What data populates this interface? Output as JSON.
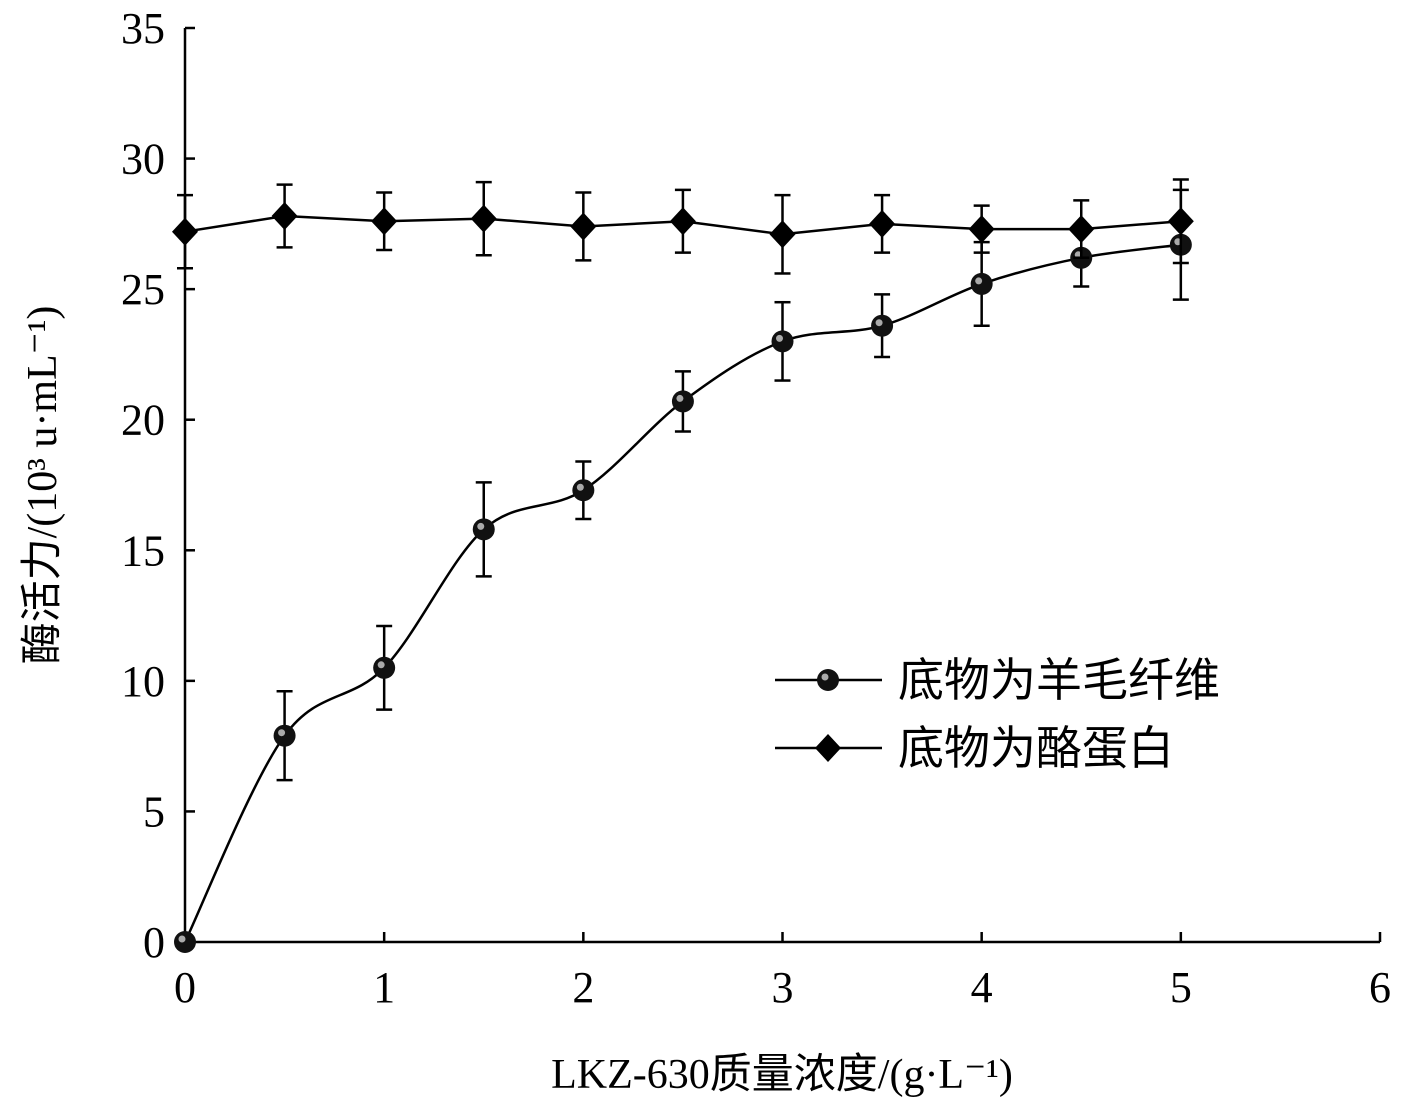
{
  "chart_data": {
    "type": "line",
    "title": "",
    "xlabel": "LKZ-630质量浓度/(g·L⁻¹)",
    "ylabel": "酶活力/(10³ u·mL⁻¹)",
    "xlim": [
      0,
      6
    ],
    "ylim": [
      0,
      35
    ],
    "xticks": [
      0,
      1,
      2,
      3,
      4,
      5,
      6
    ],
    "yticks": [
      0,
      5,
      10,
      15,
      20,
      25,
      30,
      35
    ],
    "grid": false,
    "legend_position": "center-right",
    "x": [
      0,
      0.5,
      1,
      1.5,
      2,
      2.5,
      3,
      3.5,
      4,
      4.5,
      5
    ],
    "series": [
      {
        "name": "底物为羊毛纤维",
        "marker": "circle",
        "smooth": true,
        "values": [
          0,
          7.9,
          10.5,
          15.8,
          17.3,
          20.7,
          23.0,
          23.6,
          25.2,
          26.2,
          26.7
        ],
        "errors": [
          0,
          1.7,
          1.6,
          1.8,
          1.1,
          1.15,
          1.5,
          1.2,
          1.6,
          1.1,
          2.1
        ]
      },
      {
        "name": "底物为酪蛋白",
        "marker": "diamond",
        "smooth": false,
        "values": [
          27.2,
          27.8,
          27.6,
          27.7,
          27.4,
          27.6,
          27.1,
          27.5,
          27.3,
          27.3,
          27.6
        ],
        "errors": [
          1.4,
          1.2,
          1.1,
          1.4,
          1.3,
          1.2,
          1.5,
          1.1,
          0.9,
          1.1,
          1.6
        ]
      }
    ],
    "color": "#000000"
  }
}
